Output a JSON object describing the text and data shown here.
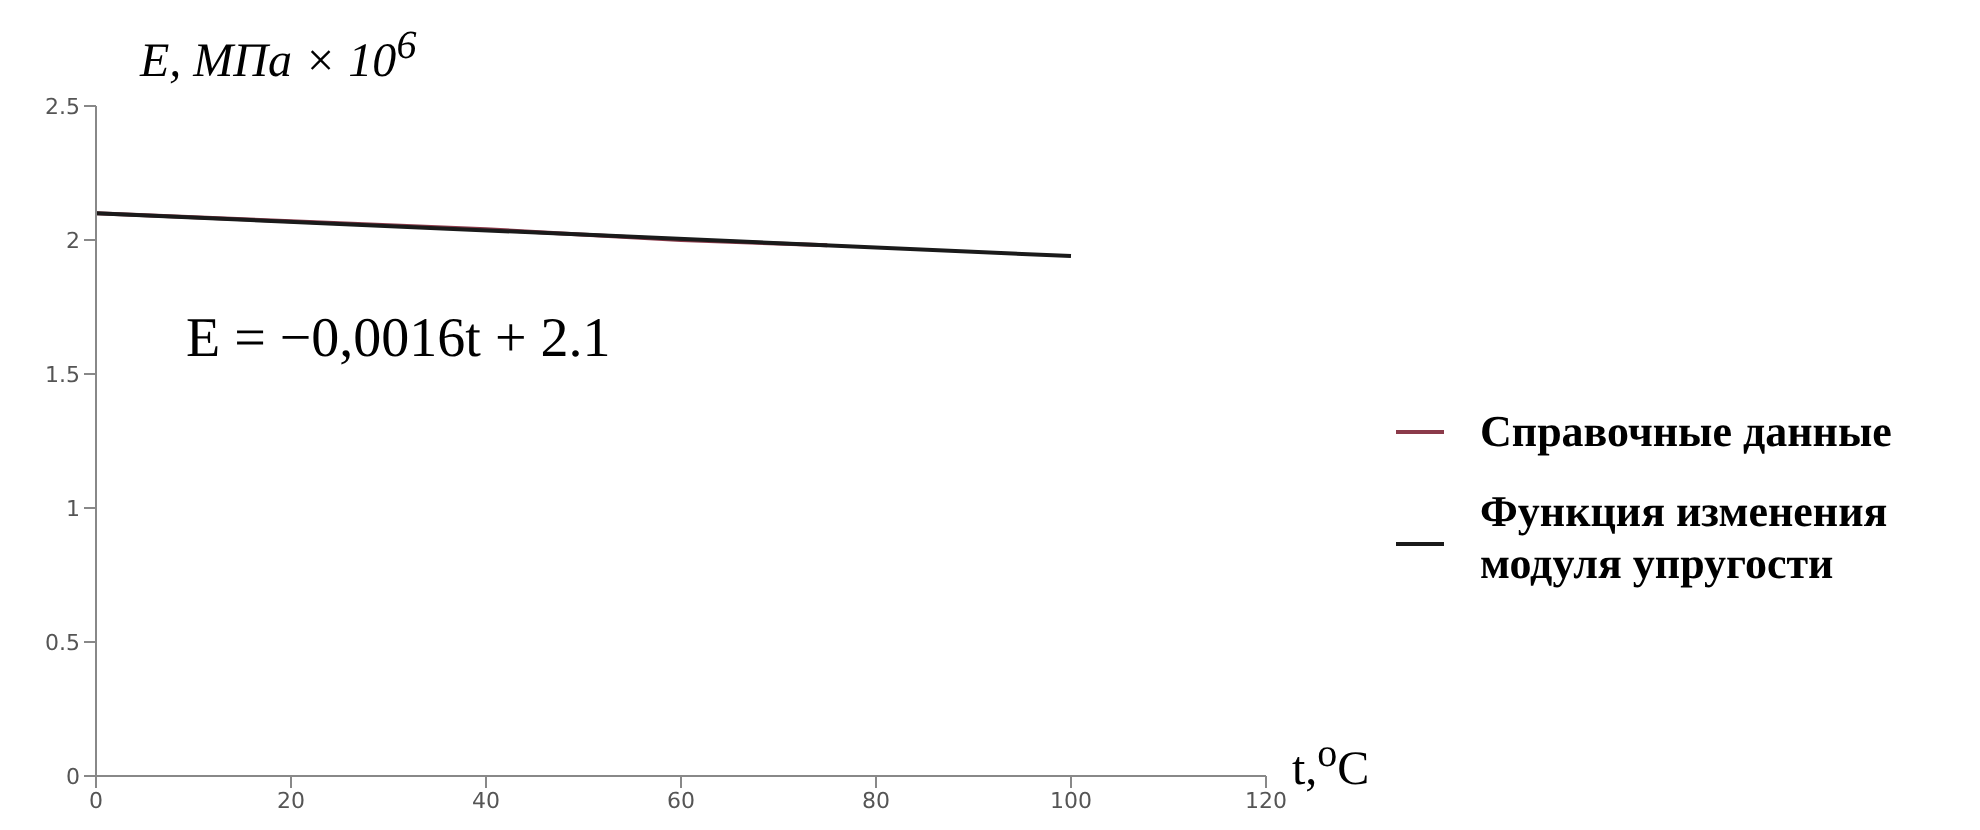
{
  "chart_data": {
    "type": "line",
    "ylabel": "E, МПа × 10$^{6}$",
    "xlabel": "t,$^{o}$C",
    "annotations": [
      "E = −0,0016t + 2.1"
    ],
    "series": [
      {
        "name": "Справочные данные",
        "color": "#8b3a4a",
        "x": [
          0,
          20,
          40,
          60,
          75
        ],
        "values": [
          2.1,
          2.07,
          2.04,
          2.0,
          1.98
        ]
      },
      {
        "name": "Функция изменения модуля упругости",
        "color": "#1a1a1a",
        "x": [
          0,
          100
        ],
        "values": [
          2.1,
          1.94
        ]
      }
    ],
    "xlim": [
      0,
      120
    ],
    "xticks": [
      0,
      20,
      40,
      60,
      80,
      100,
      120
    ],
    "ylim": [
      0,
      2.5
    ],
    "yticks": [
      0,
      0.5,
      1,
      1.5,
      2,
      2.5
    ],
    "grid": false,
    "legend": "right",
    "marker": "none",
    "line_style": "solid"
  }
}
